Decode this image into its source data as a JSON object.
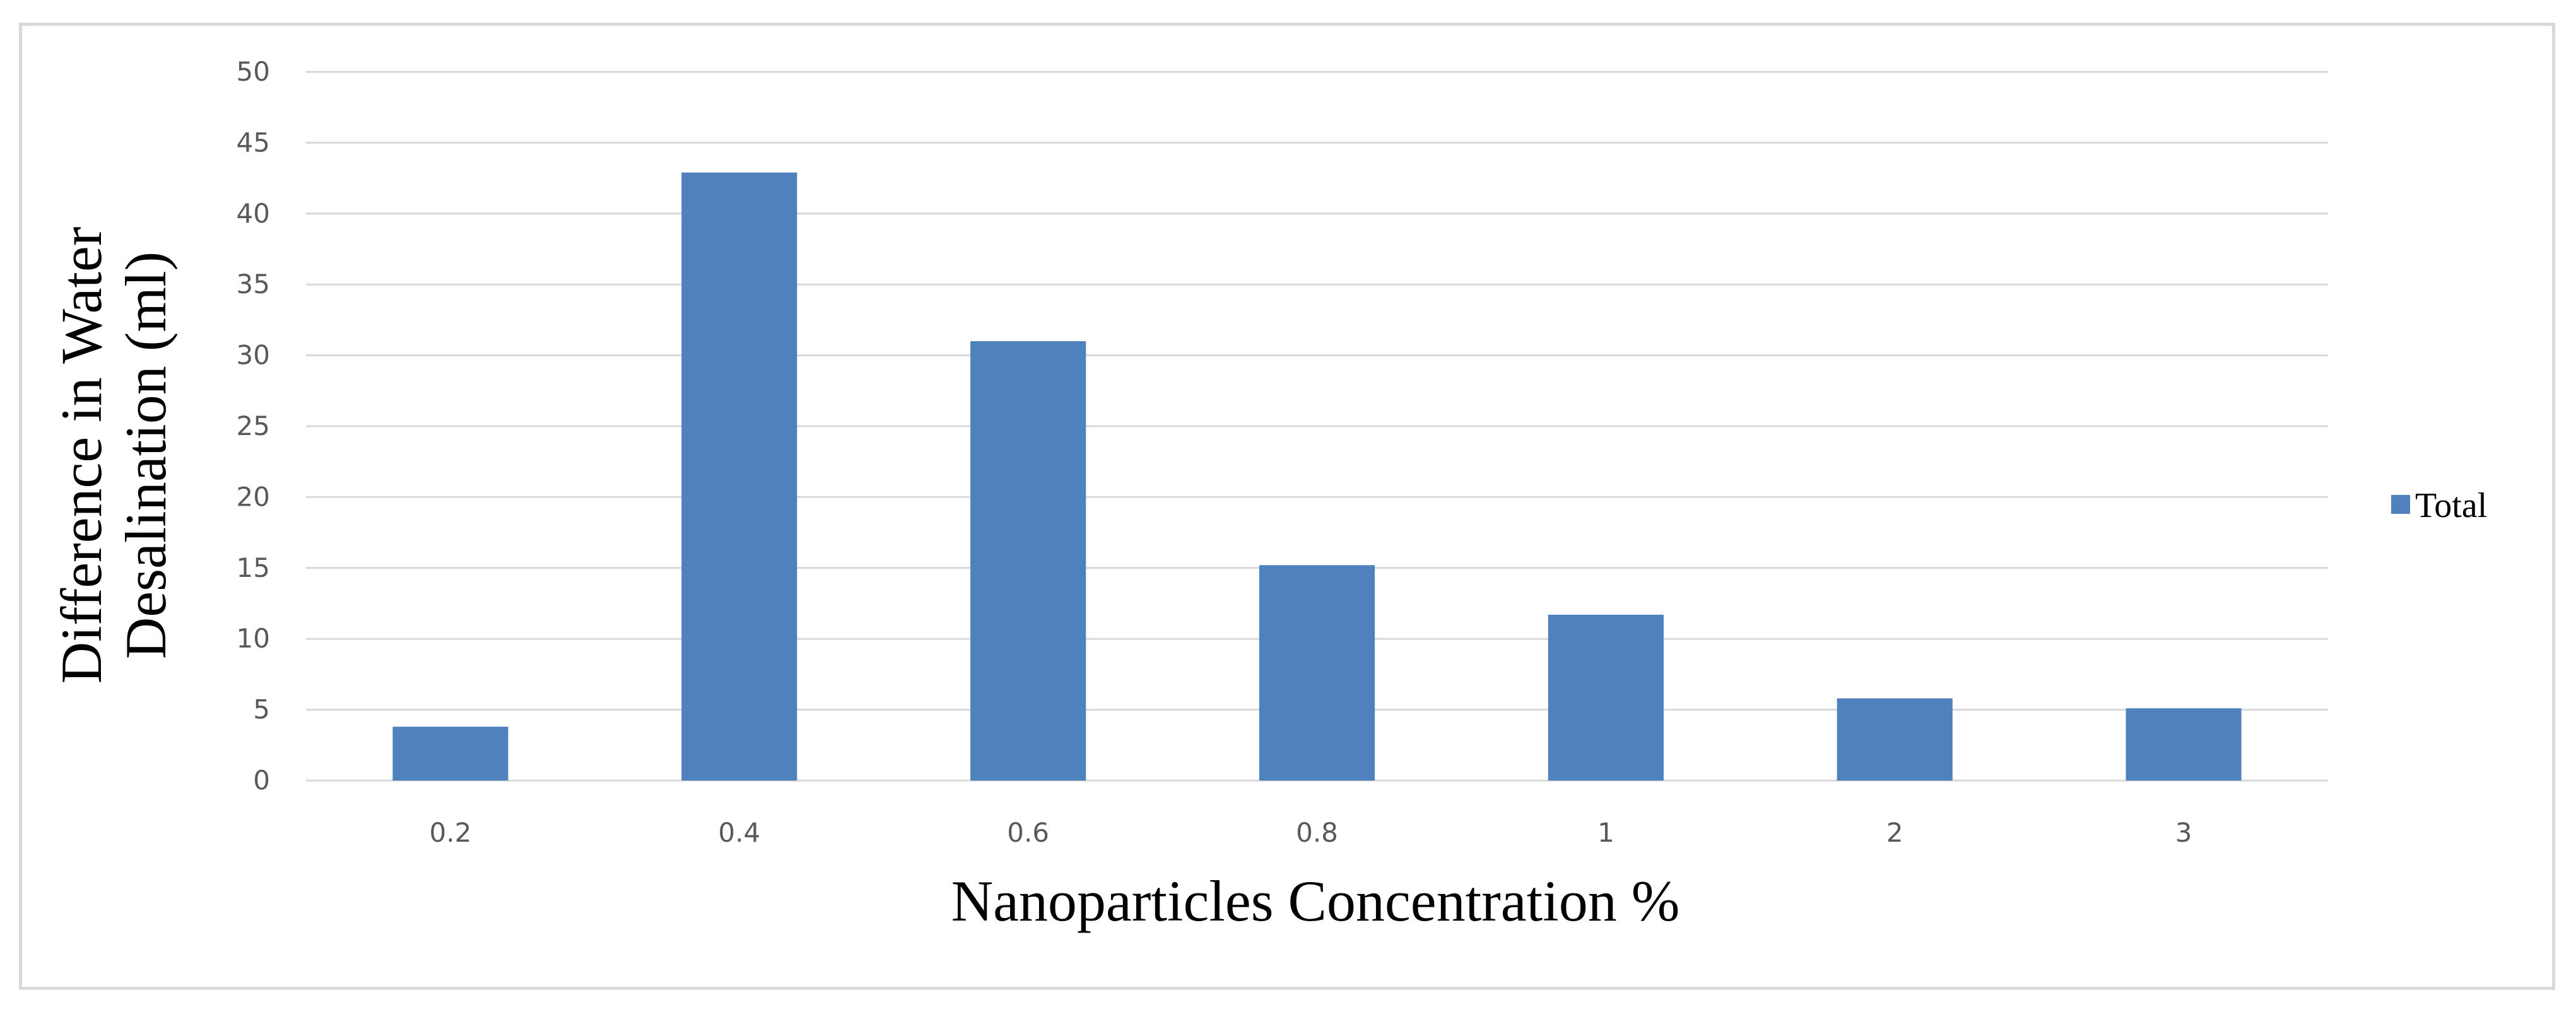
{
  "chart_data": {
    "type": "bar",
    "title": "",
    "categories": [
      "0.2",
      "0.4",
      "0.6",
      "0.8",
      "1",
      "2",
      "3"
    ],
    "series": [
      {
        "name": "Total",
        "values": [
          3.8,
          42.9,
          31.0,
          15.2,
          11.7,
          5.8,
          5.1
        ],
        "color": "#4f81bd"
      }
    ],
    "xlabel": "Nanoparticles Concentration %",
    "ylabel_lines": [
      "Difference in Water",
      "Desalination (ml)"
    ],
    "ylim": [
      0,
      50
    ],
    "yticks": [
      "0",
      "5",
      "10",
      "15",
      "20",
      "25",
      "30",
      "35",
      "40",
      "45",
      "50"
    ],
    "grid": true,
    "legend_position": "right"
  },
  "colors": {
    "bar": "#4f81bd",
    "grid": "#d9d9d9",
    "tick_text": "#595959"
  }
}
